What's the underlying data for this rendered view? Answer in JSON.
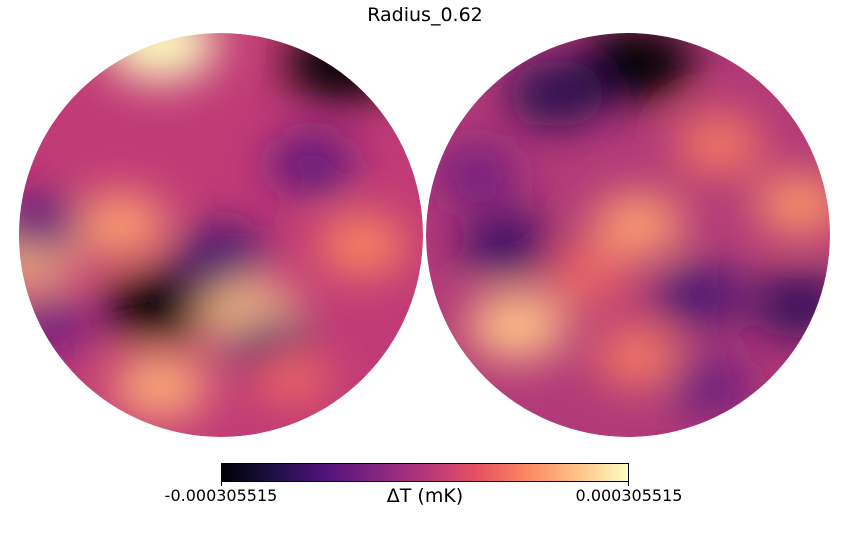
{
  "chart_data": {
    "type": "heatmap",
    "title": "Radius_0.62",
    "projection": "orthographic (two hemispheres)",
    "colormap": "magma",
    "colorbar": {
      "label": "ΔT (mK)",
      "min": -0.000305515,
      "max": 0.000305515,
      "min_label": "-0.000305515",
      "max_label": "0.000305515",
      "placement": "bottom"
    },
    "hemispheres": [
      {
        "name": "left",
        "features": [
          {
            "lon": -0.3,
            "lat": 0.95,
            "value": 1.0
          },
          {
            "lon": 0.6,
            "lat": 0.85,
            "value": -1.0
          },
          {
            "lon": -0.3,
            "lat": -0.35,
            "value": -1.0
          },
          {
            "lon": 0.15,
            "lat": -0.4,
            "value": 0.75
          },
          {
            "lon": -0.5,
            "lat": 0.05,
            "value": 0.6
          },
          {
            "lon": -0.95,
            "lat": -0.1,
            "value": 0.7
          },
          {
            "lon": -0.3,
            "lat": -0.75,
            "value": 0.65
          },
          {
            "lon": 0.25,
            "lat": -0.55,
            "value": -0.55
          },
          {
            "lon": 0.0,
            "lat": -0.1,
            "value": -0.55
          },
          {
            "lon": -0.9,
            "lat": 0.05,
            "value": -0.45
          },
          {
            "lon": 0.7,
            "lat": -0.05,
            "value": 0.5
          },
          {
            "lon": 0.45,
            "lat": 0.35,
            "value": -0.45
          },
          {
            "lon": -0.85,
            "lat": -0.45,
            "value": -0.35
          },
          {
            "lon": 0.35,
            "lat": -0.7,
            "value": 0.35
          }
        ]
      },
      {
        "name": "right",
        "features": [
          {
            "lon": 0.05,
            "lat": 0.85,
            "value": -1.0
          },
          {
            "lon": -0.35,
            "lat": 0.7,
            "value": -0.7
          },
          {
            "lon": -0.55,
            "lat": -0.45,
            "value": 0.75
          },
          {
            "lon": 0.05,
            "lat": 0.05,
            "value": 0.6
          },
          {
            "lon": 0.85,
            "lat": 0.15,
            "value": 0.55
          },
          {
            "lon": -0.6,
            "lat": -0.05,
            "value": -0.6
          },
          {
            "lon": 0.35,
            "lat": -0.3,
            "value": -0.55
          },
          {
            "lon": 0.85,
            "lat": -0.35,
            "value": -0.65
          },
          {
            "lon": 0.45,
            "lat": 0.45,
            "value": 0.45
          },
          {
            "lon": -0.75,
            "lat": 0.3,
            "value": -0.35
          },
          {
            "lon": 0.05,
            "lat": -0.6,
            "value": 0.45
          },
          {
            "lon": 0.4,
            "lat": -0.75,
            "value": -0.4
          },
          {
            "lon": -0.2,
            "lat": -0.2,
            "value": 0.35
          }
        ]
      }
    ]
  }
}
